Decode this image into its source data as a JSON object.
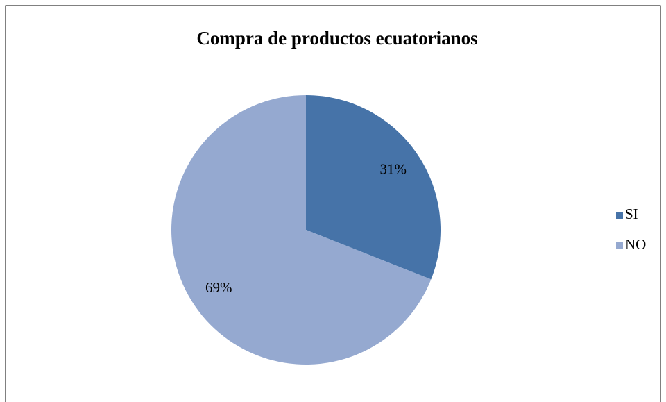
{
  "chart_data": {
    "type": "pie",
    "title": "Compra de productos ecuatorianos",
    "categories": [
      "SI",
      "NO"
    ],
    "values": [
      31,
      69
    ],
    "value_labels": [
      "31%",
      "69%"
    ],
    "colors": [
      "#4673a8",
      "#95a9d0"
    ],
    "legend": "right"
  }
}
